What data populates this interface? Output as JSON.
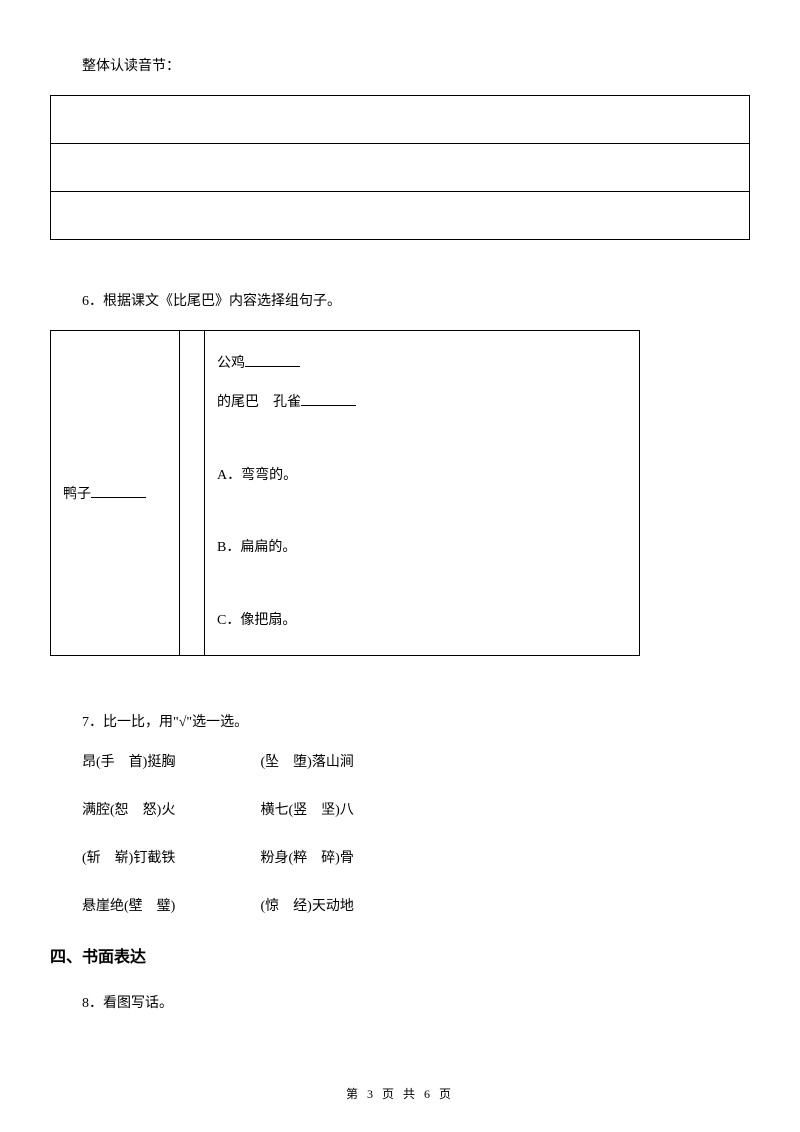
{
  "title_line": "整体认读音节：",
  "q6": {
    "number": "6．根据课文《比尾巴》内容选择组句子。",
    "left": "鸭子",
    "r_line1": "公鸡",
    "r_line2a": "的尾巴",
    "r_line2b": "孔雀",
    "optA": "A．弯弯的。",
    "optB": "B．扁扁的。",
    "optC": "C．像把扇。"
  },
  "q7": {
    "number": "7．比一比，用\"√\"选一选。",
    "rows": [
      {
        "a": "昂(手　首)挺胸",
        "b": "(坠　堕)落山涧"
      },
      {
        "a": "满腔(恕　怒)火",
        "b": "横七(竖　坚)八"
      },
      {
        "a": "(斩　崭)钉截铁",
        "b": "粉身(粹　碎)骨"
      },
      {
        "a": "悬崖绝(壁　璧)",
        "b": "(惊　经)天动地"
      }
    ]
  },
  "section4": "四、书面表达",
  "q8": "8．看图写话。",
  "footer": {
    "prefix": "第 ",
    "current": "3",
    "mid": " 页 共 ",
    "total": "6",
    "suffix": " 页"
  }
}
